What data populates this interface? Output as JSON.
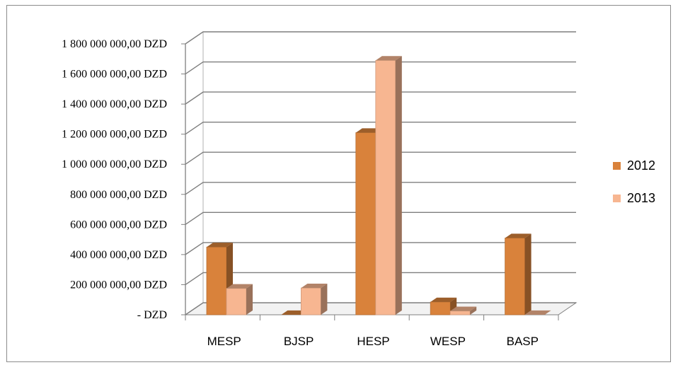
{
  "chart_data": {
    "type": "bar",
    "categories": [
      "MESP",
      "BJSP",
      "HESP",
      "WESP",
      "BASP"
    ],
    "series": [
      {
        "name": "2012",
        "values": [
          450000000,
          0,
          1210000000,
          85000000,
          510000000
        ],
        "color": "#d9823b"
      },
      {
        "name": "2013",
        "values": [
          175000000,
          178000000,
          1690000000,
          25000000,
          0
        ],
        "color": "#f7b691"
      }
    ],
    "yticks": [
      {
        "value": 0,
        "label": "-   DZD"
      },
      {
        "value": 200000000,
        "label": "200 000 000,00 DZD"
      },
      {
        "value": 400000000,
        "label": "400 000 000,00 DZD"
      },
      {
        "value": 600000000,
        "label": "600 000 000,00 DZD"
      },
      {
        "value": 800000000,
        "label": "800 000 000,00 DZD"
      },
      {
        "value": 1000000000,
        "label": "1 000 000 000,00 DZD"
      },
      {
        "value": 1200000000,
        "label": "1 200 000 000,00 DZD"
      },
      {
        "value": 1400000000,
        "label": "1 400 000 000,00 DZD"
      },
      {
        "value": 1600000000,
        "label": "1 600 000 000,00 DZD"
      },
      {
        "value": 1800000000,
        "label": "1 800 000 000,00 DZD"
      }
    ],
    "ylim": [
      0,
      1800000000
    ],
    "grid": true,
    "style": "3d-column",
    "legend_position": "right"
  }
}
